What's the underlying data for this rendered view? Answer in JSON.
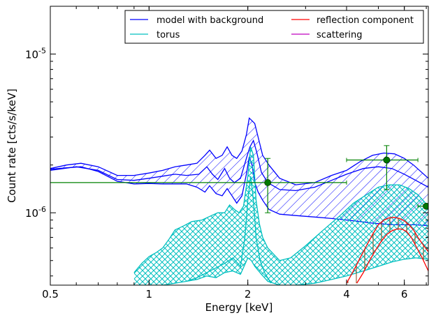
{
  "chart_data": {
    "type": "line",
    "xlabel": "Energy [keV]",
    "ylabel": "Count rate [cts/s/keV]",
    "x_scale": "log",
    "y_scale": "log",
    "xlim": [
      0.5,
      7.1
    ],
    "ylim": [
      3.5e-07,
      2e-05
    ],
    "x_ticks": [
      {
        "value": 0.5,
        "label": "0.5"
      },
      {
        "value": 1,
        "label": "1"
      },
      {
        "value": 2,
        "label": "2"
      },
      {
        "value": 4,
        "label": "4"
      },
      {
        "value": 6,
        "label": "6"
      }
    ],
    "y_ticks": [
      {
        "value": 1e-06,
        "base": "10",
        "exp": "-6"
      },
      {
        "value": 1e-05,
        "base": "10",
        "exp": "-5"
      }
    ],
    "grid": false,
    "legend": {
      "placement": "top-right",
      "columns": 2,
      "entries": [
        {
          "name": "model with background",
          "color": "#0000ff"
        },
        {
          "name": "reflection component",
          "color": "#ff0000"
        },
        {
          "name": "torus",
          "color": "#00bfbf"
        },
        {
          "name": "scattering",
          "color": "#bf00bf"
        }
      ]
    },
    "colors": {
      "model": "#0000ff",
      "torus": "#00bfbf",
      "reflection": "#ff0000",
      "reflection_hatch": "#8b4513",
      "scattering": "#bf00bf",
      "data": "#008000",
      "data_marker": "#007700"
    },
    "series": [
      {
        "name": "model with background",
        "role": "band-upper",
        "x": [
          0.5,
          0.56,
          0.62,
          0.7,
          0.8,
          0.9,
          1.0,
          1.1,
          1.2,
          1.3,
          1.4,
          1.48,
          1.53,
          1.6,
          1.67,
          1.73,
          1.79,
          1.85,
          1.92,
          1.98,
          2.02,
          2.06,
          2.1,
          2.15,
          2.22,
          2.32,
          2.5,
          2.8,
          3.2,
          3.6,
          4.0,
          4.4,
          4.8,
          5.2,
          5.6,
          6.0,
          6.4,
          7.1
        ],
        "y": [
          1.9e-06,
          2e-06,
          2.05e-06,
          1.95e-06,
          1.72e-06,
          1.72e-06,
          1.78e-06,
          1.85e-06,
          1.95e-06,
          2e-06,
          2.05e-06,
          2.3e-06,
          2.48e-06,
          2.2e-06,
          2.3e-06,
          2.6e-06,
          2.3e-06,
          2.2e-06,
          2.45e-06,
          3.1e-06,
          3.95e-06,
          3.8e-06,
          3.65e-06,
          3e-06,
          2.3e-06,
          2e-06,
          1.65e-06,
          1.5e-06,
          1.55e-06,
          1.72e-06,
          1.85e-06,
          2.1e-06,
          2.3e-06,
          2.38e-06,
          2.35e-06,
          2.2e-06,
          2e-06,
          1.65e-06
        ]
      },
      {
        "name": "model with background",
        "role": "band-lower",
        "x": [
          0.5,
          0.56,
          0.62,
          0.7,
          0.8,
          0.9,
          1.0,
          1.1,
          1.2,
          1.3,
          1.4,
          1.48,
          1.53,
          1.6,
          1.67,
          1.73,
          1.79,
          1.85,
          1.92,
          1.98,
          2.02,
          2.06,
          2.1,
          2.15,
          2.22,
          2.32,
          2.5,
          2.8,
          3.2,
          3.6,
          4.0,
          4.4,
          4.8,
          5.2,
          5.6,
          6.0,
          6.4,
          7.1
        ],
        "y": [
          1.88e-06,
          1.92e-06,
          1.95e-06,
          1.82e-06,
          1.58e-06,
          1.52e-06,
          1.53e-06,
          1.52e-06,
          1.52e-06,
          1.52e-06,
          1.45e-06,
          1.35e-06,
          1.48e-06,
          1.32e-06,
          1.28e-06,
          1.42e-06,
          1.28e-06,
          1.15e-06,
          1.28e-06,
          1.75e-06,
          2.25e-06,
          2e-06,
          1.55e-06,
          1.35e-06,
          1.2e-06,
          1.05e-06,
          9.8e-07,
          9.6e-07,
          9.4e-07,
          9.2e-07,
          9e-07,
          8.8e-07,
          8.6e-07,
          8.5e-07,
          8.4e-07,
          8.4e-07,
          8.4e-07,
          8.3e-07
        ]
      },
      {
        "name": "model with background",
        "role": "model-inner",
        "x": [
          0.5,
          0.6,
          0.7,
          0.8,
          0.9,
          1.0,
          1.1,
          1.2,
          1.3,
          1.42,
          1.5,
          1.56,
          1.62,
          1.7,
          1.76,
          1.82,
          1.9,
          1.98,
          2.03,
          2.08,
          2.13,
          2.2,
          2.3,
          2.5,
          2.8,
          3.2,
          3.6,
          4.0,
          4.5,
          5.0,
          5.5,
          6.0,
          6.5,
          7.1
        ],
        "y": [
          1.85e-06,
          1.95e-06,
          1.85e-06,
          1.62e-06,
          1.6e-06,
          1.65e-06,
          1.7e-06,
          1.75e-06,
          1.72e-06,
          1.75e-06,
          1.95e-06,
          1.75e-06,
          1.62e-06,
          1.9e-06,
          1.65e-06,
          1.55e-06,
          1.65e-06,
          2.2e-06,
          2.6e-06,
          2.85e-06,
          2.4e-06,
          1.8e-06,
          1.55e-06,
          1.4e-06,
          1.38e-06,
          1.45e-06,
          1.6e-06,
          1.75e-06,
          1.9e-06,
          1.95e-06,
          1.9e-06,
          1.75e-06,
          1.6e-06,
          1.45e-06
        ]
      },
      {
        "name": "torus",
        "role": "band-upper",
        "x": [
          0.9,
          0.95,
          1.0,
          1.05,
          1.1,
          1.15,
          1.2,
          1.28,
          1.35,
          1.45,
          1.55,
          1.62,
          1.7,
          1.76,
          1.82,
          1.88,
          1.94,
          2.0,
          2.04,
          2.08,
          2.12,
          2.17,
          2.22,
          2.3,
          2.5,
          2.7,
          3.0,
          3.4,
          3.8,
          4.2,
          4.6,
          5.0,
          5.4,
          5.8,
          6.2,
          6.6,
          7.1
        ],
        "y": [
          4.2e-07,
          4.8e-07,
          5.3e-07,
          5.6e-07,
          6e-07,
          6.8e-07,
          7.8e-07,
          8.3e-07,
          8.8e-07,
          9e-07,
          9.6e-07,
          1e-06,
          1e-06,
          1.12e-06,
          1.05e-06,
          1e-06,
          1.1e-06,
          1.7e-06,
          2.6e-06,
          2.3e-06,
          1.2e-06,
          8.5e-07,
          7e-07,
          6e-07,
          5e-07,
          5.2e-07,
          6.2e-07,
          7.8e-07,
          9.5e-07,
          1.15e-06,
          1.3e-06,
          1.45e-06,
          1.5e-06,
          1.5e-06,
          1.42e-06,
          1.3e-06,
          1.1e-06
        ]
      },
      {
        "name": "torus",
        "role": "band-lower",
        "x": [
          0.9,
          1.0,
          1.1,
          1.2,
          1.3,
          1.4,
          1.5,
          1.6,
          1.7,
          1.8,
          1.9,
          2.0,
          2.05,
          2.1,
          2.2,
          2.3,
          2.5,
          2.8,
          3.2,
          3.6,
          4.0,
          4.5,
          5.0,
          5.5,
          6.0,
          6.5,
          7.1
        ],
        "y": [
          3.5e-07,
          3.5e-07,
          3.5e-07,
          3.6e-07,
          3.7e-07,
          3.8e-07,
          4e-07,
          3.9e-07,
          4.2e-07,
          4.3e-07,
          4.1e-07,
          5.2e-07,
          5e-07,
          4.6e-07,
          4.1e-07,
          3.7e-07,
          3.5e-07,
          3.5e-07,
          3.6e-07,
          3.8e-07,
          4e-07,
          4.3e-07,
          4.6e-07,
          4.9e-07,
          5.1e-07,
          5.2e-07,
          5.1e-07
        ]
      },
      {
        "name": "torus",
        "role": "line",
        "x": [
          1.3,
          1.4,
          1.5,
          1.6,
          1.7,
          1.8,
          1.9,
          1.96,
          2.0,
          2.04,
          2.08,
          2.12,
          2.18,
          2.25,
          2.35
        ],
        "y": [
          3.7e-07,
          3.9e-07,
          4.2e-07,
          4.5e-07,
          4.8e-07,
          5.2e-07,
          4.6e-07,
          7e-07,
          1.2e-06,
          1.7e-06,
          1.2e-06,
          7e-07,
          5e-07,
          4.2e-07,
          3.6e-07
        ]
      },
      {
        "name": "reflection component",
        "role": "band-upper",
        "x": [
          4.0,
          4.2,
          4.4,
          4.6,
          4.8,
          5.0,
          5.2,
          5.4,
          5.6,
          5.8,
          6.0,
          6.2,
          6.4,
          6.6,
          6.8,
          7.1
        ],
        "y": [
          3.6e-07,
          4.3e-07,
          5.2e-07,
          6.2e-07,
          7.3e-07,
          8.4e-07,
          9e-07,
          9.3e-07,
          9.35e-07,
          9.2e-07,
          8.9e-07,
          8.4e-07,
          7.8e-07,
          7e-07,
          6.4e-07,
          5.7e-07
        ]
      },
      {
        "name": "reflection component",
        "role": "band-lower",
        "x": [
          4.3,
          4.5,
          4.7,
          4.9,
          5.1,
          5.3,
          5.5,
          5.7,
          5.9,
          6.1,
          6.3,
          6.5,
          6.8,
          7.1
        ],
        "y": [
          3.6e-07,
          4.2e-07,
          5e-07,
          5.8e-07,
          6.6e-07,
          7.3e-07,
          7.7e-07,
          7.9e-07,
          7.9e-07,
          7.6e-07,
          7e-07,
          6.2e-07,
          5.2e-07,
          4.3e-07
        ]
      }
    ],
    "data_points": [
      {
        "x": 2.3,
        "y": 1.55e-06,
        "xerr": [
          0.5,
          4.0
        ],
        "yerr": [
          1e-06,
          2.2e-06
        ]
      },
      {
        "x": 5.3,
        "y": 2.15e-06,
        "xerr": [
          4.0,
          6.6
        ],
        "yerr": [
          1.4e-06,
          2.65e-06
        ]
      },
      {
        "x": 7.0,
        "y": 1.1e-06,
        "xerr": [
          6.6,
          7.1
        ],
        "yerr": [
          1.1e-06,
          1.1e-06
        ]
      }
    ]
  }
}
